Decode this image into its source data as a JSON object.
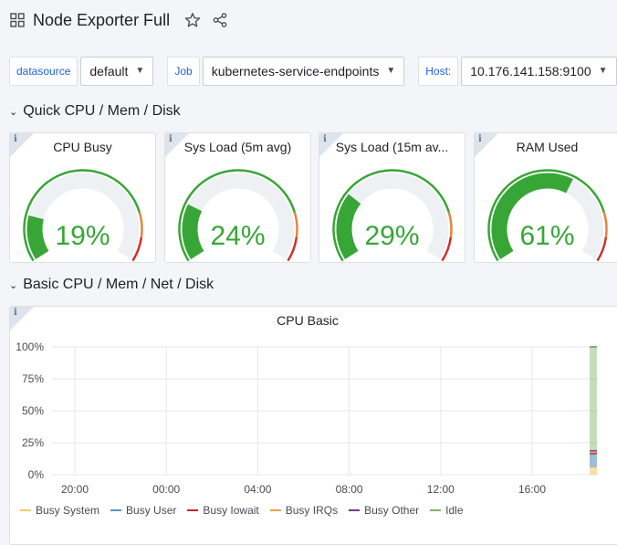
{
  "header": {
    "title": "Node Exporter Full"
  },
  "variables": [
    {
      "label": "datasource",
      "value": "default"
    },
    {
      "label": "Job",
      "value": "kubernetes-service-endpoints"
    },
    {
      "label": "Host:",
      "value": "10.176.141.158:9100"
    }
  ],
  "rows": [
    {
      "title": "Quick CPU / Mem / Disk"
    },
    {
      "title": "Basic CPU / Mem / Net / Disk"
    }
  ],
  "gauges": [
    {
      "title": "CPU Busy",
      "value": 19,
      "display": "19%"
    },
    {
      "title": "Sys Load (5m avg)",
      "value": 24,
      "display": "24%"
    },
    {
      "title": "Sys Load (15m av...",
      "value": 29,
      "display": "29%"
    },
    {
      "title": "RAM Used",
      "value": 61,
      "display": "61%"
    }
  ],
  "colors": {
    "ok": "#37a636",
    "warn": "#e4843a",
    "crit": "#d32d2d",
    "track": "#eef1f4"
  },
  "chart_panel": {
    "title": "CPU Basic",
    "legend": [
      {
        "name": "Busy System",
        "color": "#f2c96d"
      },
      {
        "name": "Busy User",
        "color": "#5794c0"
      },
      {
        "name": "Busy Iowait",
        "color": "#c4272b"
      },
      {
        "name": "Busy IRQs",
        "color": "#f0a04b"
      },
      {
        "name": "Busy Other",
        "color": "#6b3f8f"
      },
      {
        "name": "Idle",
        "color": "#7eb26d"
      }
    ]
  },
  "chart_data": {
    "type": "area",
    "title": "CPU Basic",
    "x_ticks": [
      "20:00",
      "00:00",
      "04:00",
      "08:00",
      "12:00",
      "16:00"
    ],
    "y_ticks": [
      "0%",
      "25%",
      "50%",
      "75%",
      "100%"
    ],
    "ylim": [
      0,
      100
    ],
    "stacked": true,
    "last_sample": {
      "x": "≈18:40",
      "series": [
        {
          "name": "Busy System",
          "values": [
            6
          ]
        },
        {
          "name": "Busy User",
          "values": [
            10
          ]
        },
        {
          "name": "Busy Iowait",
          "values": [
            1
          ]
        },
        {
          "name": "Busy IRQs",
          "values": [
            1
          ]
        },
        {
          "name": "Busy Other",
          "values": [
            1
          ]
        },
        {
          "name": "Idle",
          "values": [
            81
          ]
        }
      ]
    },
    "grid": true,
    "legend": "bottom"
  }
}
